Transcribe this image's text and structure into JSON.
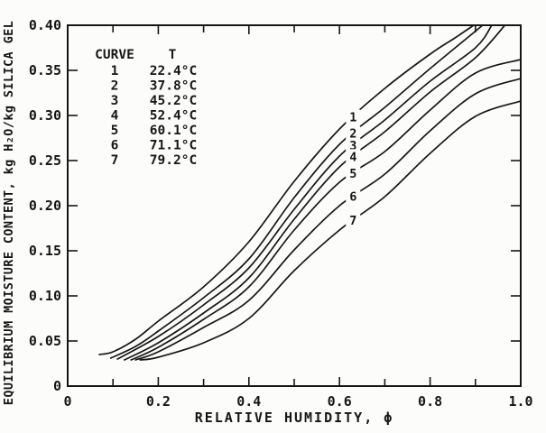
{
  "figure": {
    "background": "#fcfcfa",
    "ink": "#161616"
  },
  "chart_data": {
    "type": "line",
    "title": "",
    "xlabel": "RELATIVE HUMIDITY, ϕ",
    "ylabel": "EQUILIBRIUM MOISTURE CONTENT, kg H₂O/kg SILICA GEL",
    "xlim": [
      0,
      1.0
    ],
    "ylim": [
      0,
      0.4
    ],
    "grid": false,
    "x_major_ticks": [
      0,
      0.2,
      0.4,
      0.6,
      0.8,
      1.0
    ],
    "x_tick_labels": [
      "0",
      "0.2",
      "0.4",
      "0.6",
      "0.8",
      "1.0"
    ],
    "x_minor_ticks": [
      0.1,
      0.3,
      0.5,
      0.7,
      0.9
    ],
    "y_major_ticks": [
      0,
      0.05,
      0.1,
      0.15,
      0.2,
      0.25,
      0.3,
      0.35,
      0.4
    ],
    "y_tick_labels": [
      "0",
      "0.05",
      "0.10",
      "0.15",
      "0.20",
      "0.25",
      "0.30",
      "0.35",
      "0.40"
    ],
    "legend": {
      "position": "top-left-inside",
      "header_curve": "CURVE",
      "header_temp": "T"
    },
    "curve_label_phi": 0.63,
    "series": [
      {
        "name": "1",
        "temperature": "22.4°C",
        "points": [
          [
            0.07,
            0.035
          ],
          [
            0.1,
            0.038
          ],
          [
            0.15,
            0.052
          ],
          [
            0.2,
            0.072
          ],
          [
            0.3,
            0.11
          ],
          [
            0.4,
            0.16
          ],
          [
            0.5,
            0.227
          ],
          [
            0.6,
            0.285
          ],
          [
            0.7,
            0.33
          ],
          [
            0.8,
            0.368
          ],
          [
            0.855,
            0.386
          ],
          [
            0.896,
            0.4
          ]
        ]
      },
      {
        "name": "2",
        "temperature": "37.8°C",
        "points": [
          [
            0.095,
            0.031
          ],
          [
            0.15,
            0.044
          ],
          [
            0.2,
            0.061
          ],
          [
            0.3,
            0.098
          ],
          [
            0.4,
            0.141
          ],
          [
            0.5,
            0.209
          ],
          [
            0.6,
            0.268
          ],
          [
            0.7,
            0.309
          ],
          [
            0.8,
            0.352
          ],
          [
            0.916,
            0.4
          ]
        ]
      },
      {
        "name": "3",
        "temperature": "45.2°C",
        "points": [
          [
            0.11,
            0.03
          ],
          [
            0.2,
            0.055
          ],
          [
            0.3,
            0.09
          ],
          [
            0.4,
            0.131
          ],
          [
            0.5,
            0.196
          ],
          [
            0.6,
            0.255
          ],
          [
            0.7,
            0.295
          ],
          [
            0.8,
            0.338
          ],
          [
            0.9,
            0.375
          ],
          [
            0.936,
            0.4
          ]
        ]
      },
      {
        "name": "4",
        "temperature": "52.4°C",
        "points": [
          [
            0.125,
            0.029
          ],
          [
            0.2,
            0.048
          ],
          [
            0.3,
            0.081
          ],
          [
            0.4,
            0.12
          ],
          [
            0.5,
            0.185
          ],
          [
            0.6,
            0.243
          ],
          [
            0.7,
            0.282
          ],
          [
            0.8,
            0.326
          ],
          [
            0.9,
            0.364
          ],
          [
            0.965,
            0.4
          ]
        ]
      },
      {
        "name": "5",
        "temperature": "60.1°C",
        "points": [
          [
            0.14,
            0.029
          ],
          [
            0.2,
            0.043
          ],
          [
            0.3,
            0.074
          ],
          [
            0.4,
            0.11
          ],
          [
            0.5,
            0.173
          ],
          [
            0.6,
            0.226
          ],
          [
            0.7,
            0.26
          ],
          [
            0.8,
            0.306
          ],
          [
            0.9,
            0.347
          ],
          [
            1.0,
            0.362
          ]
        ]
      },
      {
        "name": "6",
        "temperature": "71.1°C",
        "points": [
          [
            0.15,
            0.029
          ],
          [
            0.2,
            0.038
          ],
          [
            0.3,
            0.065
          ],
          [
            0.4,
            0.095
          ],
          [
            0.5,
            0.151
          ],
          [
            0.6,
            0.2
          ],
          [
            0.7,
            0.235
          ],
          [
            0.8,
            0.283
          ],
          [
            0.9,
            0.324
          ],
          [
            1.0,
            0.341
          ]
        ]
      },
      {
        "name": "7",
        "temperature": "79.2°C",
        "points": [
          [
            0.16,
            0.029
          ],
          [
            0.2,
            0.032
          ],
          [
            0.3,
            0.048
          ],
          [
            0.4,
            0.075
          ],
          [
            0.5,
            0.128
          ],
          [
            0.6,
            0.173
          ],
          [
            0.7,
            0.21
          ],
          [
            0.8,
            0.258
          ],
          [
            0.9,
            0.299
          ],
          [
            1.0,
            0.316
          ]
        ]
      }
    ]
  }
}
